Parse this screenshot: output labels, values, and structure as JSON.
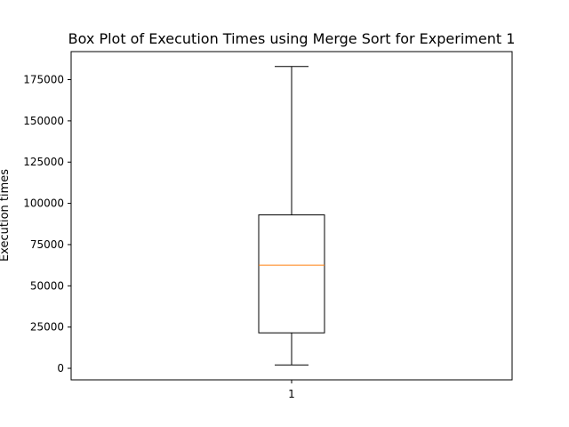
{
  "chart_data": {
    "type": "box",
    "title": "Box Plot of Execution Times using Merge Sort for Experiment 1",
    "xlabel": "",
    "ylabel": "Execution times",
    "categories": [
      "1"
    ],
    "boxes": [
      {
        "label": "1",
        "whisker_low": 2000,
        "q1": 21500,
        "median": 62500,
        "q3": 93000,
        "whisker_high": 183000
      }
    ],
    "yticks": [
      0,
      25000,
      50000,
      75000,
      100000,
      125000,
      150000,
      175000
    ],
    "ytick_labels": [
      "0",
      "25000",
      "50000",
      "75000",
      "100000",
      "125000",
      "150000",
      "175000"
    ],
    "ylim": [
      -7000,
      192000
    ],
    "grid": false,
    "legend": "none",
    "colors": {
      "box": "#000000",
      "median": "#ff7f0e",
      "whisker": "#000000",
      "axes": "#000000"
    }
  }
}
